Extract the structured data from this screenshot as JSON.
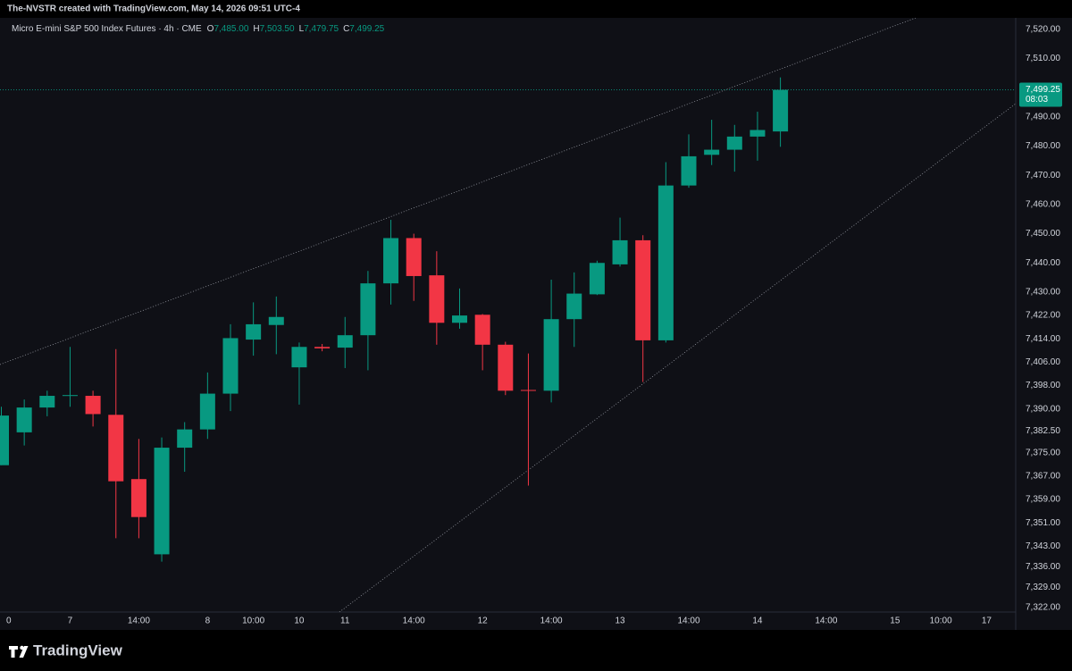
{
  "header": {
    "title": "The-NVSTR created with TradingView.com, May 14, 2026 09:51 UTC-4"
  },
  "chart_data": {
    "type": "candlestick",
    "legend": {
      "symbol": "Micro E-mini S&P 500 Index Futures · 4h · CME",
      "ohlc": [
        {
          "key": "O",
          "value": 7485,
          "label": "7,485.00"
        },
        {
          "key": "H",
          "value": 7503.5,
          "label": "7,503.50"
        },
        {
          "key": "L",
          "value": 7479.75,
          "label": "7,479.75"
        },
        {
          "key": "C",
          "value": 7499.25,
          "label": "7,499.25"
        }
      ]
    },
    "open": [
      7370.75,
      7382,
      7390.5,
      7394.5,
      7394.5,
      7388,
      7366,
      7340.25,
      7376.75,
      7383,
      7395.25,
      7413.75,
      7418.75,
      7404.25,
      7411.25,
      7411,
      7415.25,
      7433,
      7448.5,
      7435.75,
      7419.5,
      7422.25,
      7412,
      7396.5,
      7396.25,
      7420.75,
      7429.25,
      7439.5,
      7447.75,
      7413.5,
      7466.5,
      7477,
      7478.75,
      7483.25,
      7485
    ],
    "high": [
      7390.75,
      7393.25,
      7396.25,
      7411.25,
      7396.25,
      7410.5,
      7379.75,
      7380.25,
      7385.5,
      7402.5,
      7419,
      7426.5,
      7428.5,
      7412.75,
      7412.25,
      7421.5,
      7437.25,
      7454.75,
      7450,
      7444,
      7431.25,
      7422.5,
      7413,
      7409,
      7434.25,
      7436.75,
      7440.75,
      7455.5,
      7449.5,
      7474.5,
      7484,
      7489,
      7487.25,
      7491.75,
      7503.5
    ],
    "low": [
      7370.75,
      7377.5,
      7387.5,
      7390.75,
      7384,
      7345.75,
      7345.75,
      7337.75,
      7368.5,
      7379.75,
      7389.25,
      7408.25,
      7408.75,
      7391.5,
      7409.75,
      7404,
      7403.25,
      7425.75,
      7427,
      7412,
      7417.5,
      7403.25,
      7394.75,
      7363.75,
      7392.25,
      7411.25,
      7429,
      7438.75,
      7399.25,
      7412.75,
      7465.75,
      7473.5,
      7471.25,
      7475,
      7479.75
    ],
    "close": [
      7387.75,
      7390.5,
      7394.5,
      7394.75,
      7388.25,
      7365.25,
      7353,
      7376.75,
      7383,
      7395.25,
      7414.25,
      7419,
      7421.5,
      7411.25,
      7410.75,
      7415.25,
      7433,
      7448.5,
      7435.5,
      7419.5,
      7422,
      7412,
      7396.25,
      7396.25,
      7420.75,
      7429.5,
      7440,
      7447.75,
      7413.5,
      7466.5,
      7476.5,
      7478.75,
      7483.25,
      7485.5,
      7499.25
    ],
    "up_color": "#089981",
    "down_color": "#f23645",
    "ylim": [
      7320,
      7530
    ],
    "yticks": [
      {
        "value": 7520,
        "label": "7,520.00"
      },
      {
        "value": 7510,
        "label": "7,510.00"
      },
      {
        "value": 7490,
        "label": "7,490.00"
      },
      {
        "value": 7480,
        "label": "7,480.00"
      },
      {
        "value": 7470,
        "label": "7,470.00"
      },
      {
        "value": 7460,
        "label": "7,460.00"
      },
      {
        "value": 7450,
        "label": "7,450.00"
      },
      {
        "value": 7440,
        "label": "7,440.00"
      },
      {
        "value": 7430,
        "label": "7,430.00"
      },
      {
        "value": 7422,
        "label": "7,422.00"
      },
      {
        "value": 7414,
        "label": "7,414.00"
      },
      {
        "value": 7406,
        "label": "7,406.00"
      },
      {
        "value": 7398,
        "label": "7,398.00"
      },
      {
        "value": 7390,
        "label": "7,390.00"
      },
      {
        "value": 7382.5,
        "label": "7,382.50"
      },
      {
        "value": 7375,
        "label": "7,375.00"
      },
      {
        "value": 7367,
        "label": "7,367.00"
      },
      {
        "value": 7359,
        "label": "7,359.00"
      },
      {
        "value": 7351,
        "label": "7,351.00"
      },
      {
        "value": 7343,
        "label": "7,343.00"
      },
      {
        "value": 7336,
        "label": "7,336.00"
      },
      {
        "value": 7329,
        "label": "7,329.00"
      },
      {
        "value": 7322,
        "label": "7,322.00"
      }
    ],
    "x_axis_labels": [
      "0",
      "7",
      "14:00",
      "8",
      "10:00",
      "10",
      "11",
      "14:00",
      "12",
      "14:00",
      "13",
      "14:00",
      "14",
      "14:00",
      "15",
      "10:00",
      "17"
    ],
    "last_price": {
      "value": 7499.25,
      "label": "7,499.25"
    },
    "countdown": "08:03"
  },
  "footer": {
    "brand": "TradingView"
  }
}
